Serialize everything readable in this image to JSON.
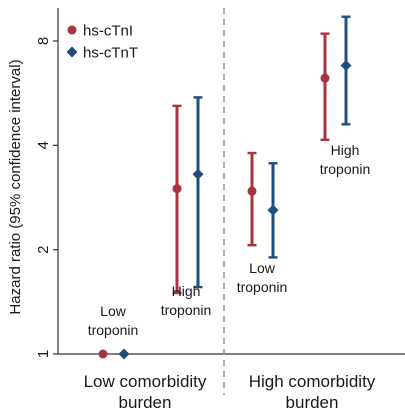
{
  "chart_data": {
    "type": "errorbar",
    "ylabel": "Hazard ratio (95% confidence interval)",
    "y_scale": "log2",
    "ylim": [
      1,
      9.4
    ],
    "yticks": [
      1,
      2,
      4,
      8
    ],
    "ytick_labels": [
      "1",
      "2",
      "4",
      "8"
    ],
    "grid": false,
    "legend_position": "top-left",
    "groups": [
      {
        "label": "Low comorbidity burden",
        "line1": "Low comorbidity",
        "line2": "burden"
      },
      {
        "label": "High comorbidity burden",
        "line1": "High comorbidity",
        "line2": "burden"
      }
    ],
    "categories": [
      {
        "group": 0,
        "line1": "Low",
        "line2": "troponin"
      },
      {
        "group": 0,
        "line1": "High",
        "line2": "troponin"
      },
      {
        "group": 1,
        "line1": "Low",
        "line2": "troponin"
      },
      {
        "group": 1,
        "line1": "High",
        "line2": "troponin"
      }
    ],
    "series": [
      {
        "name": "hs-cTnI",
        "color": "#a8343f",
        "marker": "circle",
        "points": [
          {
            "category": 0,
            "est": 1.0,
            "low": null,
            "high": null
          },
          {
            "category": 1,
            "est": 3.0,
            "low": 1.5,
            "high": 5.2
          },
          {
            "category": 2,
            "est": 2.95,
            "low": 2.06,
            "high": 3.8
          },
          {
            "category": 3,
            "est": 6.25,
            "low": 4.15,
            "high": 8.4
          }
        ]
      },
      {
        "name": "hs-cTnT",
        "color": "#1f4e79",
        "marker": "diamond",
        "points": [
          {
            "category": 0,
            "est": 1.0,
            "low": null,
            "high": null
          },
          {
            "category": 1,
            "est": 3.3,
            "low": 1.56,
            "high": 5.5
          },
          {
            "category": 2,
            "est": 2.6,
            "low": 1.9,
            "high": 3.55
          },
          {
            "category": 3,
            "est": 6.8,
            "low": 4.6,
            "high": 9.4
          }
        ]
      }
    ]
  }
}
